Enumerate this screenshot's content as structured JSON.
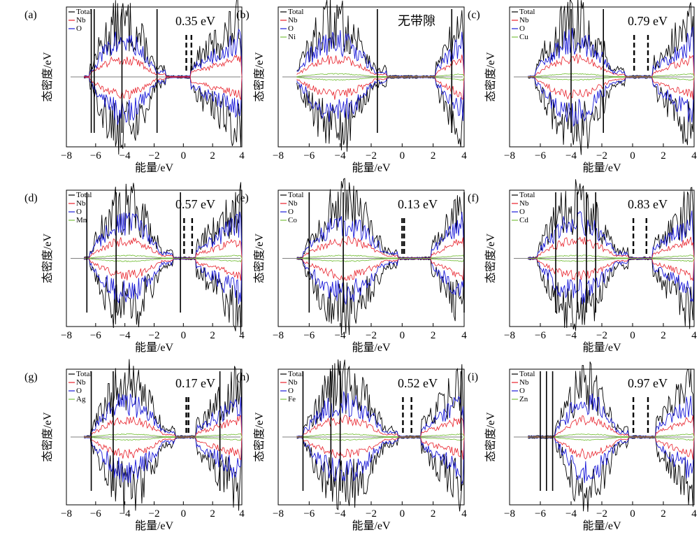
{
  "figure": {
    "ylabel": "态密度/eV",
    "xlabel": "能量/eV",
    "series_colors": {
      "Total": "#000000",
      "Nb": "#e8202a",
      "O": "#1a1ad8",
      "dopant": "#7cc242"
    }
  },
  "chart_data": [
    {
      "panel_label": "(a)",
      "type": "line",
      "annotation": "0.35 eV",
      "legend": [
        "Total",
        "Nb",
        "O"
      ],
      "xlabel": "能量/eV",
      "ylabel": "态密度/eV",
      "xlim": [
        -8,
        4
      ],
      "xticks": [
        -8,
        -6,
        -4,
        -2,
        0,
        2,
        4
      ],
      "vb_range": [
        -6.4,
        -1.2
      ],
      "cb_range": [
        0.5,
        4.0
      ],
      "gap_lines": [
        0.2,
        0.55
      ],
      "spikes": [
        -6.3,
        -6.1,
        -4.2,
        -1.8
      ],
      "gap_ev": 0.35
    },
    {
      "panel_label": "(b)",
      "type": "line",
      "annotation": "无带隙",
      "legend": [
        "Total",
        "Nb",
        "O",
        "Ni"
      ],
      "xlabel": "能量/eV",
      "ylabel": "态密度/eV",
      "xlim": [
        -8,
        4
      ],
      "xticks": [
        -8,
        -6,
        -4,
        -2,
        0,
        2,
        4
      ],
      "vb_range": [
        -6.8,
        -1.0
      ],
      "cb_range": [
        2.2,
        4.0
      ],
      "gap_lines": [],
      "spikes": [
        -1.6,
        3.2
      ],
      "gap_ev": 0
    },
    {
      "panel_label": "(c)",
      "type": "line",
      "annotation": "0.79 eV",
      "legend": [
        "Total",
        "Nb",
        "O",
        "Cu"
      ],
      "xlabel": "能量/eV",
      "ylabel": "态密度/eV",
      "xlim": [
        -8,
        4
      ],
      "xticks": [
        -8,
        -6,
        -4,
        -2,
        0,
        2,
        4
      ],
      "vb_range": [
        -6.3,
        -0.5
      ],
      "cb_range": [
        1.3,
        4.0
      ],
      "gap_lines": [
        0.1,
        1.0
      ],
      "spikes": [
        -4.0,
        -1.9
      ],
      "gap_ev": 0.79
    },
    {
      "panel_label": "(d)",
      "type": "line",
      "annotation": "0.57 eV",
      "legend": [
        "Total",
        "Nb",
        "O",
        "Mn"
      ],
      "xlabel": "能量/eV",
      "ylabel": "态密度/eV",
      "xlim": [
        -8,
        4
      ],
      "xticks": [
        -8,
        -6,
        -4,
        -2,
        0,
        2,
        4
      ],
      "vb_range": [
        -6.4,
        -0.7
      ],
      "cb_range": [
        0.9,
        4.0
      ],
      "gap_lines": [
        0.05,
        0.6
      ],
      "spikes": [
        -6.6,
        -4.6,
        -0.2
      ],
      "gap_ev": 0.57
    },
    {
      "panel_label": "(e)",
      "type": "line",
      "annotation": "0.13 eV",
      "legend": [
        "Total",
        "Nb",
        "O",
        "Co"
      ],
      "xlabel": "能量/eV",
      "ylabel": "态密度/eV",
      "xlim": [
        -8,
        4
      ],
      "xticks": [
        -8,
        -6,
        -4,
        -2,
        0,
        2,
        4
      ],
      "vb_range": [
        -6.4,
        -0.3
      ],
      "cb_range": [
        1.9,
        4.0
      ],
      "gap_lines": [
        0.0,
        0.13
      ],
      "spikes": [
        -6.0,
        -3.8,
        4.0
      ],
      "gap_ev": 0.13
    },
    {
      "panel_label": "(f)",
      "type": "line",
      "annotation": "0.83 eV",
      "legend": [
        "Total",
        "Nb",
        "O",
        "Cd"
      ],
      "xlabel": "能量/eV",
      "ylabel": "态密度/eV",
      "xlim": [
        -8,
        4
      ],
      "xticks": [
        -8,
        -6,
        -4,
        -2,
        0,
        2,
        4
      ],
      "vb_range": [
        -6.2,
        -0.3
      ],
      "cb_range": [
        1.3,
        4.0
      ],
      "gap_lines": [
        0.05,
        0.9
      ],
      "spikes": [
        -5.0,
        -3.6,
        -3.0,
        -2.4
      ],
      "gap_ev": 0.83
    },
    {
      "panel_label": "(g)",
      "type": "line",
      "annotation": "0.17 eV",
      "legend": [
        "Total",
        "Nb",
        "O",
        "Ag"
      ],
      "xlabel": "能量/eV",
      "ylabel": "态密度/eV",
      "xlim": [
        -8,
        4
      ],
      "xticks": [
        -8,
        -6,
        -4,
        -2,
        0,
        2,
        4
      ],
      "vb_range": [
        -6.3,
        -0.6
      ],
      "cb_range": [
        0.9,
        4.0
      ],
      "gap_lines": [
        0.2,
        0.35
      ],
      "spikes": [
        -6.3,
        -4.8,
        2.5
      ],
      "gap_ev": 0.17
    },
    {
      "panel_label": "(h)",
      "type": "line",
      "annotation": "0.52 eV",
      "legend": [
        "Total",
        "Nb",
        "O",
        "Fe"
      ],
      "xlabel": "能量/eV",
      "ylabel": "态密度/eV",
      "xlim": [
        -8,
        4
      ],
      "xticks": [
        -8,
        -6,
        -4,
        -2,
        0,
        2,
        4
      ],
      "vb_range": [
        -6.4,
        -0.3
      ],
      "cb_range": [
        1.2,
        4.0
      ],
      "gap_lines": [
        0.05,
        0.6
      ],
      "spikes": [
        -6.4,
        -4.6,
        -4.0,
        3.8
      ],
      "gap_ev": 0.52
    },
    {
      "panel_label": "(i)",
      "type": "line",
      "annotation": "0.97 eV",
      "legend": [
        "Total",
        "Nb",
        "O",
        "Zn"
      ],
      "xlabel": "能量/eV",
      "ylabel": "态密度/eV",
      "xlim": [
        -8,
        4
      ],
      "xticks": [
        -8,
        -6,
        -4,
        -2,
        0,
        2,
        4
      ],
      "vb_range": [
        -5.0,
        -0.3
      ],
      "cb_range": [
        1.5,
        4.0
      ],
      "gap_lines": [
        0.05,
        1.0
      ],
      "spikes": [
        -6.0,
        -5.6,
        -5.2
      ],
      "gap_ev": 0.97
    }
  ]
}
